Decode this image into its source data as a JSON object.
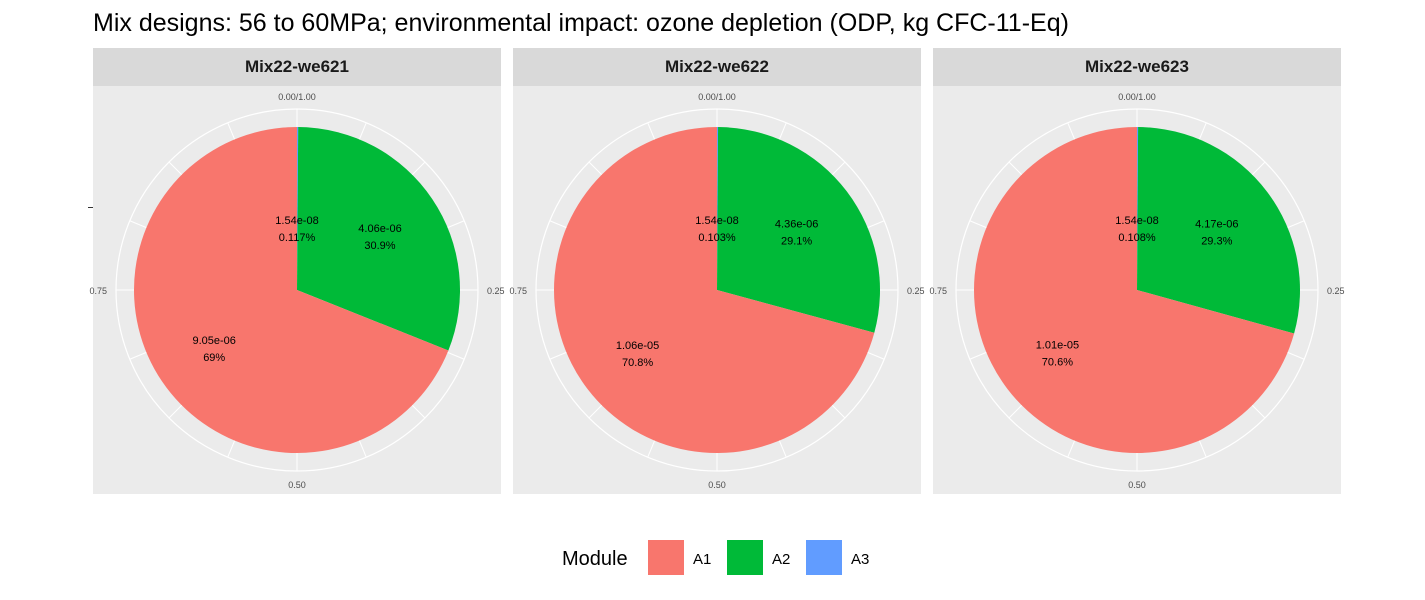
{
  "title": "Mix designs: 56 to 60MPa; environmental impact: ozone depletion (ODP, kg CFC-11-Eq)",
  "colors": {
    "A1": "#F8766D",
    "A2": "#00BA38",
    "A3": "#619CFF"
  },
  "legend": {
    "title": "Module",
    "items": [
      "A1",
      "A2",
      "A3"
    ]
  },
  "chart_data": [
    {
      "type": "pie",
      "title": "Mix22-we621",
      "theta_ticks": [
        "0.00/1.00",
        "0.25",
        "0.50",
        "0.75"
      ],
      "slices": [
        {
          "module": "A3",
          "value": 1.54e-08,
          "value_label": "1.54e-08",
          "percent_label": "0.117%"
        },
        {
          "module": "A2",
          "value": 4.06e-06,
          "value_label": "4.06e-06",
          "percent_label": "30.9%"
        },
        {
          "module": "A1",
          "value": 9.05e-06,
          "value_label": "9.05e-06",
          "percent_label": "69%"
        }
      ]
    },
    {
      "type": "pie",
      "title": "Mix22-we622",
      "theta_ticks": [
        "0.00/1.00",
        "0.25",
        "0.50",
        "0.75"
      ],
      "slices": [
        {
          "module": "A3",
          "value": 1.54e-08,
          "value_label": "1.54e-08",
          "percent_label": "0.103%"
        },
        {
          "module": "A2",
          "value": 4.36e-06,
          "value_label": "4.36e-06",
          "percent_label": "29.1%"
        },
        {
          "module": "A1",
          "value": 1.06e-05,
          "value_label": "1.06e-05",
          "percent_label": "70.8%"
        }
      ]
    },
    {
      "type": "pie",
      "title": "Mix22-we623",
      "theta_ticks": [
        "0.00/1.00",
        "0.25",
        "0.50",
        "0.75"
      ],
      "slices": [
        {
          "module": "A3",
          "value": 1.54e-08,
          "value_label": "1.54e-08",
          "percent_label": "0.108%"
        },
        {
          "module": "A2",
          "value": 4.17e-06,
          "value_label": "4.17e-06",
          "percent_label": "29.3%"
        },
        {
          "module": "A1",
          "value": 1.01e-05,
          "value_label": "1.01e-05",
          "percent_label": "70.6%"
        }
      ]
    }
  ]
}
